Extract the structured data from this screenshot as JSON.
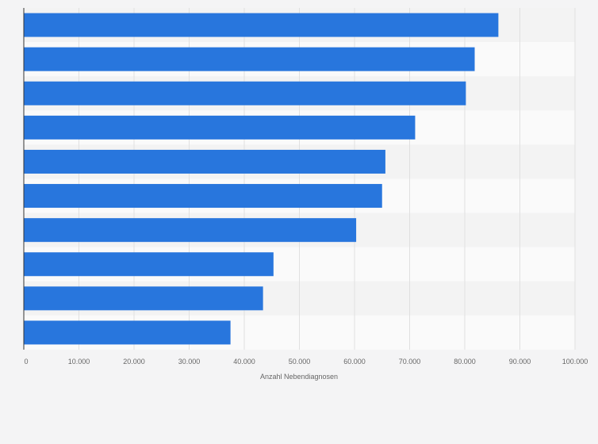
{
  "chart_data": {
    "type": "bar",
    "orientation": "horizontal",
    "title": "",
    "xlabel": "Anzahl Nebendiagnosen",
    "ylabel": "",
    "categories": [
      "",
      "",
      "",
      "",
      "",
      "",
      "",
      "",
      "",
      ""
    ],
    "values": [
      86100,
      81800,
      80200,
      71000,
      65600,
      65000,
      60300,
      45300,
      43400,
      37500
    ],
    "xlim": [
      0,
      100000
    ],
    "ticks": [
      0,
      10000,
      20000,
      30000,
      40000,
      50000,
      60000,
      70000,
      80000,
      90000,
      100000
    ],
    "tick_labels": [
      "0",
      "10.000",
      "20.000",
      "30.000",
      "40.000",
      "50.000",
      "60.000",
      "70.000",
      "80.000",
      "90.000",
      "100.000"
    ],
    "grid": "vertical",
    "colors": {
      "bar": "#2876dd",
      "background": "#f4f4f5",
      "band_light": "#fafafa",
      "band_dark": "#f3f3f3",
      "grid": "#e0e0e0",
      "axis": "#333333",
      "text": "#666666"
    }
  }
}
